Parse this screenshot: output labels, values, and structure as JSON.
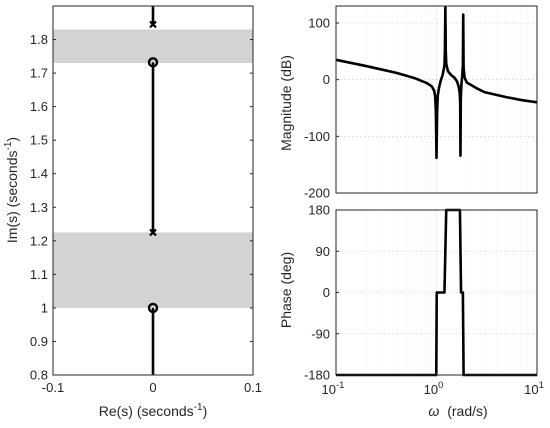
{
  "chart_data": [
    {
      "type": "scatter",
      "subtype": "pole-zero map",
      "xlabel": "Re(s) (seconds",
      "xlabel_sup": "-1",
      "xlabel_end": ")",
      "ylabel": "Im(s) (seconds",
      "ylabel_sup": "-1",
      "ylabel_end": ")",
      "xlim": [
        -0.1,
        0.1
      ],
      "ylim": [
        0.8,
        1.9
      ],
      "xticks": [
        -0.1,
        0,
        0.1
      ],
      "xtick_labels": [
        "-0.1",
        "0",
        "0.1"
      ],
      "yticks": [
        0.8,
        0.9,
        1.0,
        1.1,
        1.2,
        1.3,
        1.4,
        1.5,
        1.6,
        1.7,
        1.8
      ],
      "ytick_labels": [
        "0.8",
        "0.9",
        "1",
        "1.1",
        "1.2",
        "1.3",
        "1.4",
        "1.5",
        "1.6",
        "1.7",
        "1.8"
      ],
      "shaded_bands": [
        {
          "y": [
            1.0,
            1.225
          ],
          "color": "#d3d3d3"
        },
        {
          "y": [
            1.73,
            1.83
          ],
          "color": "#d3d3d3"
        }
      ],
      "poles": [
        {
          "re": 0,
          "im": 1.225
        },
        {
          "re": 0,
          "im": 1.845
        }
      ],
      "zeros": [
        {
          "re": 0,
          "im": 1.0
        },
        {
          "re": 0,
          "im": 1.732
        }
      ],
      "locus_segments": [
        {
          "re": 0,
          "im": [
            0.8,
            1.0
          ]
        },
        {
          "re": 0,
          "im": [
            1.225,
            1.732
          ]
        },
        {
          "re": 0,
          "im": [
            1.845,
            1.9
          ]
        }
      ],
      "grid": false
    },
    {
      "type": "line",
      "subtype": "bode magnitude",
      "ylabel": "Magnitude (dB)",
      "xscale": "log",
      "xlim": [
        0.1,
        10
      ],
      "ylim": [
        -200,
        130
      ],
      "yticks": [
        -200,
        -100,
        0,
        100
      ],
      "ytick_labels": [
        "-200",
        "-100",
        "0",
        "100"
      ],
      "grid": true,
      "series": [
        {
          "x": [
            0.1,
            0.2,
            0.4,
            0.6,
            0.8,
            0.9,
            0.95,
            0.97,
            0.985,
            1.0,
            1.015,
            1.03,
            1.06,
            1.1,
            1.15,
            1.2,
            1.212,
            1.225,
            1.237,
            1.25,
            1.3,
            1.4,
            1.5,
            1.6,
            1.66,
            1.7,
            1.72,
            1.732,
            1.745,
            1.77,
            1.8,
            1.83,
            1.845,
            1.86,
            1.9,
            2.0,
            2.5,
            3.0,
            5.0,
            7.0,
            10.0
          ],
          "y": [
            35,
            24,
            12,
            3,
            -6,
            -12,
            -20,
            -30,
            -55,
            -138,
            -55,
            -28,
            -14,
            -2,
            8,
            25,
            50,
            128,
            50,
            28,
            15,
            8,
            4,
            -3,
            -12,
            -22,
            -40,
            -134,
            -35,
            -8,
            5,
            25,
            115,
            22,
            4,
            -5,
            -15,
            -22,
            -31,
            -36,
            -40
          ]
        }
      ]
    },
    {
      "type": "line",
      "subtype": "bode phase",
      "xlabel": "ω",
      "xlabel_units": "(rad/s)",
      "ylabel": "Phase (deg)",
      "xscale": "log",
      "xlim": [
        0.1,
        10
      ],
      "ylim": [
        -180,
        180
      ],
      "xticks": [
        0.1,
        1,
        10
      ],
      "xtick_base": "10",
      "xtick_exps": [
        "-1",
        "0",
        "1"
      ],
      "yticks": [
        -180,
        -90,
        0,
        90,
        180
      ],
      "ytick_labels": [
        "-180",
        "-90",
        "0",
        "90",
        "180"
      ],
      "grid": true,
      "series": [
        {
          "x": [
            0.1,
            0.995,
            1.005,
            1.2,
            1.25,
            1.71,
            1.755,
            1.83,
            1.86,
            10.0
          ],
          "y": [
            -180,
            -180,
            0,
            0,
            180,
            180,
            0,
            0,
            -180,
            -180
          ]
        }
      ]
    }
  ]
}
